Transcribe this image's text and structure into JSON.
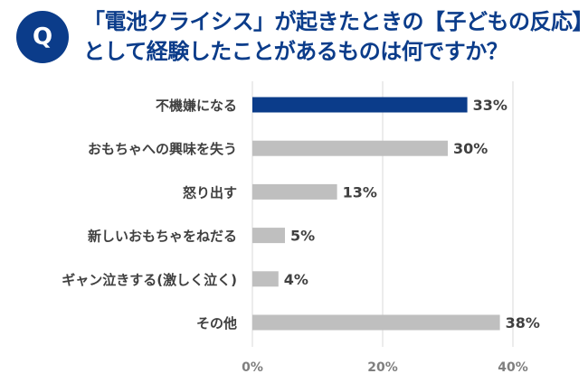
{
  "colors": {
    "navy": "#0b3c8a",
    "gray_bar": "#bfbfbf",
    "grid": "#d9d9d9",
    "text": "#404040"
  },
  "header": {
    "badge_letter": "Q",
    "question_line1": "「電池クライシス」が起きたときの【子どもの反応】",
    "question_line2": "として経験したことがあるものは何ですか？"
  },
  "chart_data": {
    "type": "bar",
    "orientation": "horizontal",
    "categories": [
      "不機嫌になる",
      "おもちゃへの興味を失う",
      "怒り出す",
      "新しいおもちゃをねだる",
      "ギャン泣きする(激しく泣く)",
      "その他"
    ],
    "values": [
      33,
      30,
      13,
      5,
      4,
      38
    ],
    "value_labels": [
      "33%",
      "30%",
      "13%",
      "5%",
      "4%",
      "38%"
    ],
    "highlight_index": 0,
    "xlim": [
      0,
      40
    ],
    "xticks": [
      0,
      20,
      40
    ],
    "xtick_labels": [
      "0%",
      "20%",
      "40%"
    ],
    "grid": true
  }
}
